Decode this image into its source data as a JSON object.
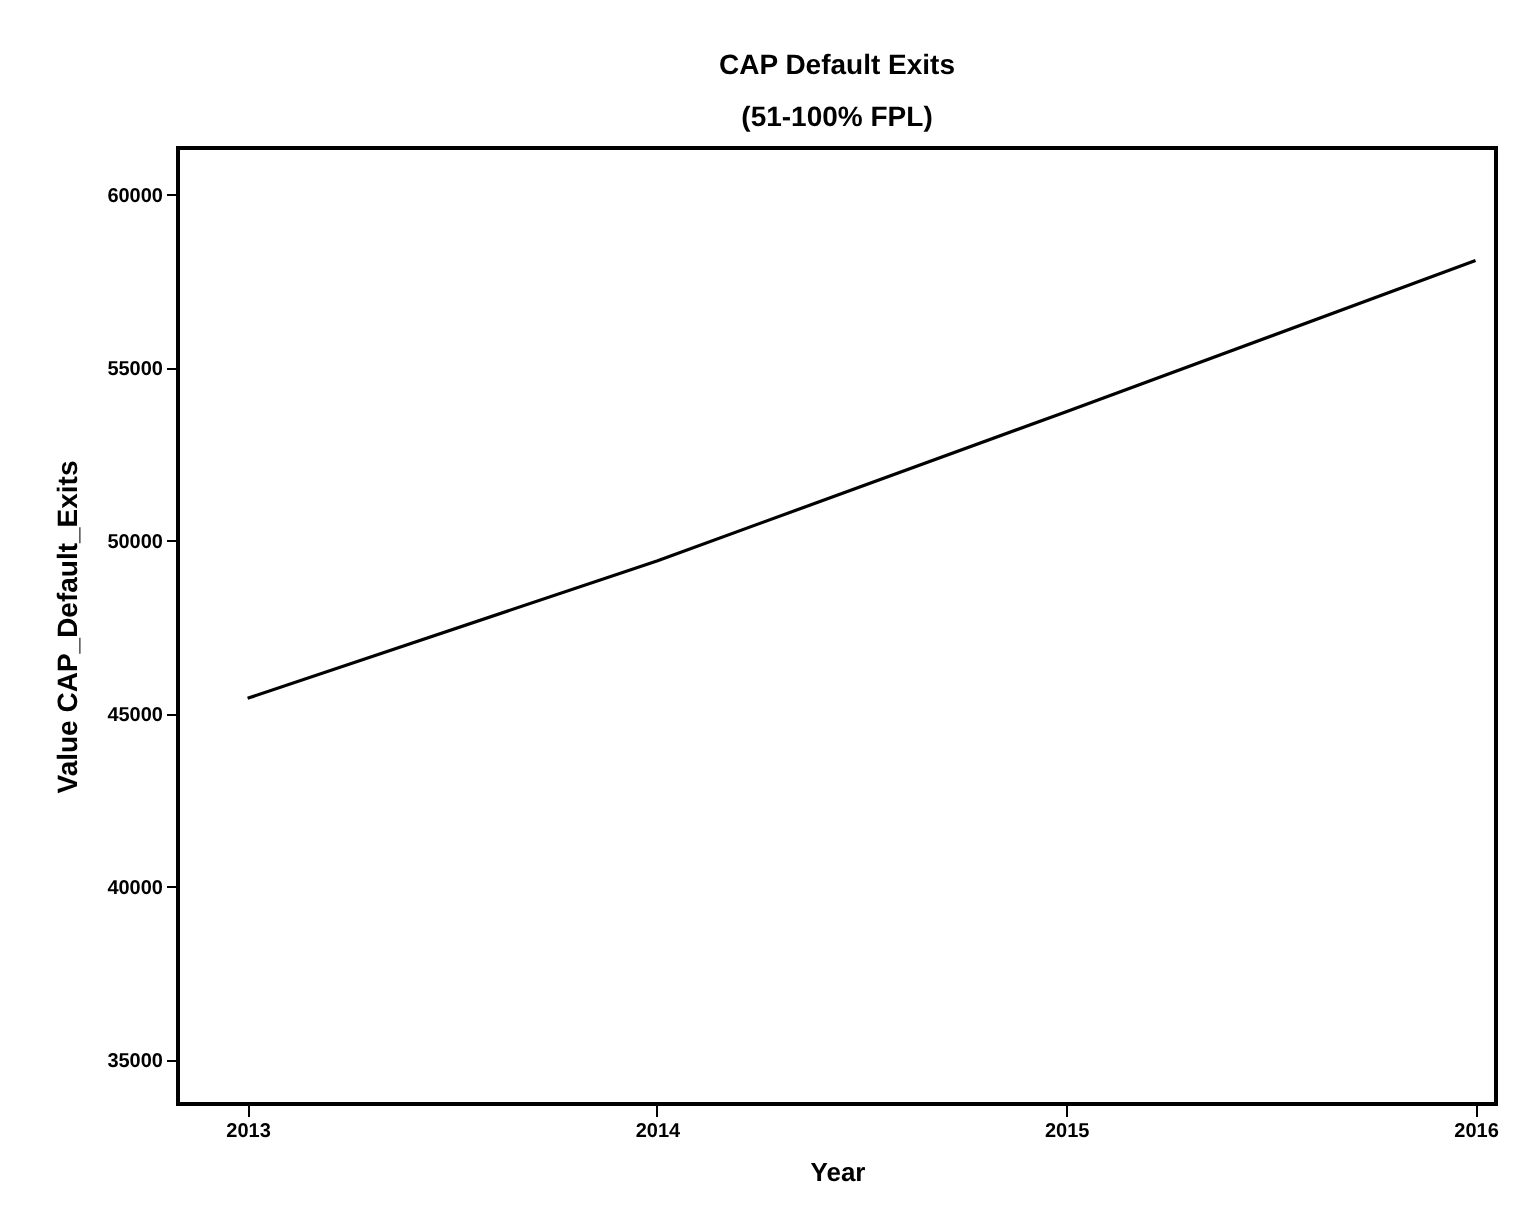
{
  "chart_data": {
    "type": "line",
    "title": "CAP Default Exits",
    "subtitle": "(51-100% FPL)",
    "xlabel": "Year",
    "ylabel": "Value CAP_Default_Exits",
    "x": [
      2013,
      2014,
      2015,
      2016
    ],
    "series": [
      {
        "color": "#000000",
        "values": [
          45450,
          49420,
          53730,
          58100
        ]
      }
    ],
    "xlim": [
      2012.83,
      2016.05
    ],
    "xticks": [
      2013,
      2014,
      2015,
      2016
    ],
    "ylim": [
      33730,
      61350
    ],
    "yticks": [
      35000,
      40000,
      45000,
      50000,
      55000,
      60000
    ],
    "grid": false,
    "marker": "none",
    "line_style": "solid"
  }
}
